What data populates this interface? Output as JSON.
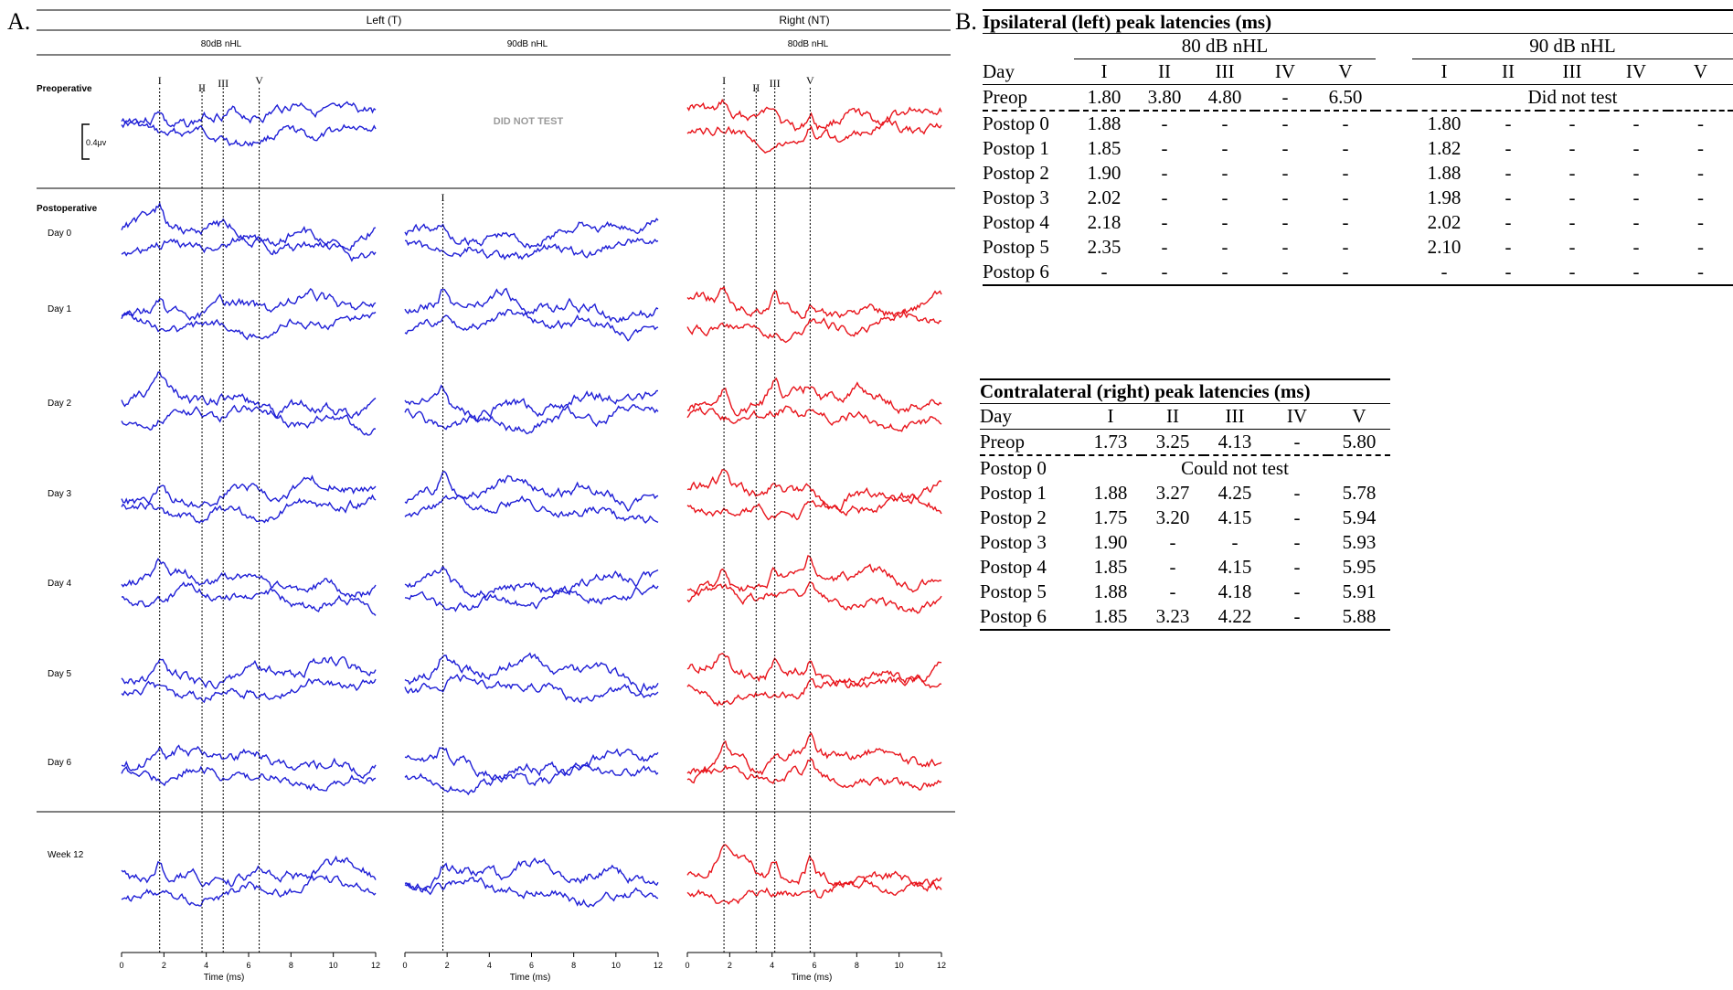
{
  "panel_a": {
    "label": "A.",
    "header_left": "Left (T)",
    "header_right": "Right (NT)",
    "col_80_left": "80dB nHL",
    "col_90_left": "90dB nHL",
    "col_80_right": "80dB nHL",
    "row_preoperative": "Preoperative",
    "row_postoperative": "Postoperative",
    "did_not_test": "DID NOT TEST",
    "scale_bar": "0.4μv",
    "peak_labels": [
      "I",
      "II",
      "III",
      "V"
    ],
    "x_axis_label": "Time (ms)",
    "x_ticks": [
      "0",
      "2",
      "4",
      "6",
      "8",
      "10",
      "12"
    ],
    "days": [
      "Day 0",
      "Day 1",
      "Day 2",
      "Day 3",
      "Day 4",
      "Day 5",
      "Day 6"
    ],
    "week12": "Week 12",
    "color_left": "#1f1fd6",
    "color_right": "#e8141b"
  },
  "chart_data": {
    "type": "line",
    "x_range_ms": [
      0,
      12
    ],
    "xlabel": "Time (ms)",
    "series": [
      {
        "name": "Left (T)",
        "peak_markers_ms": {
          "I": 1.8,
          "II": 3.8,
          "III": 4.8,
          "V": 6.5
        }
      },
      {
        "name": "Right (NT)",
        "peak_markers_ms": {
          "I": 1.73,
          "II": 3.25,
          "III": 4.13,
          "V": 5.8
        }
      }
    ]
  },
  "panel_b": {
    "label": "B.",
    "ipsi_title": "Ipsilateral (left) peak latencies (ms)",
    "ipsi_80": "80 dB nHL",
    "ipsi_90": "90 dB nHL",
    "ipsi_day": "Day",
    "ipsi_waves80": [
      "I",
      "II",
      "III",
      "IV",
      "V"
    ],
    "ipsi_waves90": [
      "I",
      "II",
      "III",
      "IV",
      "V"
    ],
    "ipsi_preop": {
      "label": "Preop",
      "v80": [
        "1.80",
        "3.80",
        "4.80",
        "-",
        "6.50"
      ],
      "v90": "Did not test"
    },
    "ipsi_rows": [
      {
        "label": "Postop 0",
        "v80": [
          "1.88",
          "-",
          "-",
          "-",
          "-"
        ],
        "v90": [
          "1.80",
          "-",
          "-",
          "-",
          "-"
        ]
      },
      {
        "label": "Postop 1",
        "v80": [
          "1.85",
          "-",
          "-",
          "-",
          "-"
        ],
        "v90": [
          "1.82",
          "-",
          "-",
          "-",
          "-"
        ]
      },
      {
        "label": "Postop 2",
        "v80": [
          "1.90",
          "-",
          "-",
          "-",
          "-"
        ],
        "v90": [
          "1.88",
          "-",
          "-",
          "-",
          "-"
        ]
      },
      {
        "label": "Postop 3",
        "v80": [
          "2.02",
          "-",
          "-",
          "-",
          "-"
        ],
        "v90": [
          "1.98",
          "-",
          "-",
          "-",
          "-"
        ]
      },
      {
        "label": "Postop 4",
        "v80": [
          "2.18",
          "-",
          "-",
          "-",
          "-"
        ],
        "v90": [
          "2.02",
          "-",
          "-",
          "-",
          "-"
        ]
      },
      {
        "label": "Postop 5",
        "v80": [
          "2.35",
          "-",
          "-",
          "-",
          "-"
        ],
        "v90": [
          "2.10",
          "-",
          "-",
          "-",
          "-"
        ]
      },
      {
        "label": "Postop 6",
        "v80": [
          "-",
          "-",
          "-",
          "-",
          "-"
        ],
        "v90": [
          "-",
          "-",
          "-",
          "-",
          "-"
        ]
      }
    ],
    "contra_title": "Contralateral (right) peak latencies (ms)",
    "contra_day": "Day",
    "contra_waves": [
      "I",
      "II",
      "III",
      "IV",
      "V"
    ],
    "contra_preop": {
      "label": "Preop",
      "v": [
        "1.73",
        "3.25",
        "4.13",
        "-",
        "5.80"
      ]
    },
    "contra_postop0": {
      "label": "Postop 0",
      "text": "Could not test"
    },
    "contra_rows": [
      {
        "label": "Postop 1",
        "v": [
          "1.88",
          "3.27",
          "4.25",
          "-",
          "5.78"
        ]
      },
      {
        "label": "Postop 2",
        "v": [
          "1.75",
          "3.20",
          "4.15",
          "-",
          "5.94"
        ]
      },
      {
        "label": "Postop 3",
        "v": [
          "1.90",
          "-",
          "-",
          "-",
          "5.93"
        ]
      },
      {
        "label": "Postop 4",
        "v": [
          "1.85",
          "-",
          "4.15",
          "-",
          "5.95"
        ]
      },
      {
        "label": "Postop 5",
        "v": [
          "1.88",
          "-",
          "4.18",
          "-",
          "5.91"
        ]
      },
      {
        "label": "Postop 6",
        "v": [
          "1.85",
          "3.23",
          "4.22",
          "-",
          "5.88"
        ]
      }
    ]
  }
}
